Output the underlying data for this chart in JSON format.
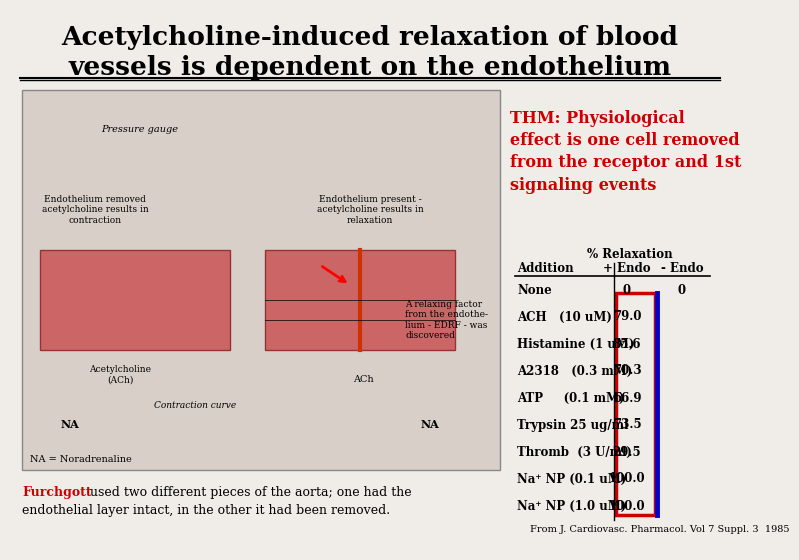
{
  "title_line1": "Acetylcholine-induced relaxation of blood",
  "title_line2": "vessels is dependent on the endothelium",
  "thm_text": "THM: Physiological\neffect is one cell removed\nfrom the receptor and 1st\nsignaling events",
  "table_header_row1": "% Relaxation",
  "table_header_row2_col1": "Addition",
  "table_header_row2_col2": "+ Endo",
  "table_header_row2_col3": "- Endo",
  "table_rows": [
    [
      "None",
      "0",
      "0"
    ],
    [
      "ACH   (10 uM)",
      "79.0",
      ""
    ],
    [
      "Histamine (1 uM)",
      "85.6",
      ""
    ],
    [
      "A2318   (0.3 mM)",
      "70.3",
      ""
    ],
    [
      "ATP     (0.1 mM)",
      "66.9",
      ""
    ],
    [
      "Trypsin 25 ug/ml",
      "73.5",
      ""
    ],
    [
      "Thromb  (3 U/ml)",
      "29.5",
      ""
    ],
    [
      "Na⁺ NP (0.1 uM)",
      "100.0",
      ""
    ],
    [
      "Na⁺ NP (1.0 uM)",
      "100.0",
      ""
    ]
  ],
  "bottom_text_red": "Furchgott",
  "bottom_text_black": " used two different pieces of the aorta; one had the\nendothelial layer intact, in the other it had been removed.",
  "citation": "From J. Cardiovasc. Pharmacol. Vol 7 Suppl. 3  1985",
  "bg_color": "#f0ede8",
  "title_color": "#000000",
  "thm_color": "#cc0000",
  "table_text_color": "#000000",
  "red_box_color": "#cc0000",
  "blue_line_color": "#0000cc"
}
